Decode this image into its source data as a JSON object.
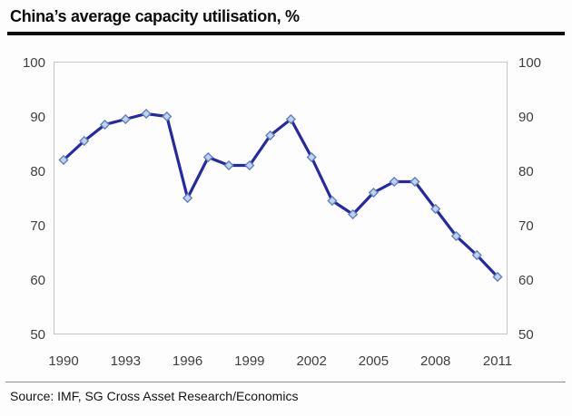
{
  "title": "China’s average capacity utilisation, %",
  "source": "Source: IMF, SG Cross Asset Research/Economics",
  "chart_data": {
    "type": "line",
    "title": "China’s average capacity utilisation, %",
    "x": [
      1990,
      1991,
      1992,
      1993,
      1994,
      1995,
      1996,
      1997,
      1998,
      1999,
      2000,
      2001,
      2002,
      2003,
      2004,
      2005,
      2006,
      2007,
      2008,
      2009,
      2010,
      2011
    ],
    "values": [
      82,
      85.5,
      88.5,
      89.5,
      90.5,
      90,
      75,
      82.5,
      81,
      81,
      86.5,
      89.5,
      82.5,
      74.5,
      72,
      76,
      78,
      78,
      73,
      68,
      64.5,
      60.5
    ],
    "xlabel": "",
    "ylabel": "",
    "ylim": [
      50,
      100
    ],
    "yticks": [
      100,
      90,
      80,
      70,
      60,
      50
    ],
    "xticks": [
      1990,
      1993,
      1996,
      1999,
      2002,
      2005,
      2008,
      2011
    ],
    "grid": false,
    "legend_position": "none",
    "y_axis_sides": "both",
    "marker": "diamond",
    "colors": {
      "line": "#2429a5",
      "marker_fill": "#bfd4ef",
      "marker_stroke": "#637fc0",
      "plot_border": "#c5c5c5",
      "axis_label": "#3f3f3f"
    }
  }
}
